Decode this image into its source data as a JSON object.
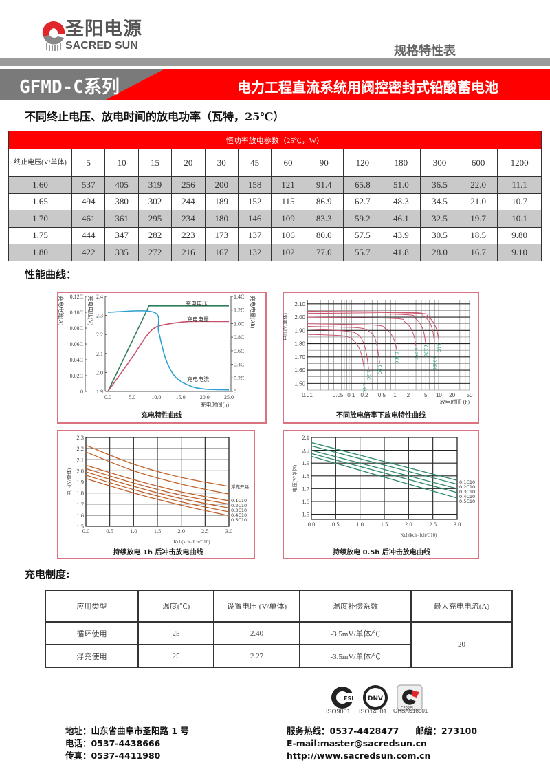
{
  "header": {
    "logo_cn": "圣阳电源",
    "logo_en": "SACRED SUN",
    "doc_type": "规格特性表",
    "series": "GFMD-C系列",
    "product": "电力工程直流系统用阀控密封式铅酸蓄电池",
    "brand_red": "#ff0000"
  },
  "power_table": {
    "section_title": "不同终止电压、放电时间的放电功率（瓦特，25℃）",
    "caption": "恒功率放电参数（25℃，W）",
    "col0_header": "终止电压(V/单体)",
    "columns": [
      "5",
      "10",
      "15",
      "20",
      "30",
      "45",
      "60",
      "90",
      "120",
      "180",
      "300",
      "600",
      "1200"
    ],
    "rows": [
      {
        "v": "1.60",
        "vals": [
          "537",
          "405",
          "319",
          "256",
          "200",
          "158",
          "121",
          "91.4",
          "65.8",
          "51.0",
          "36.5",
          "22.0",
          "11.1"
        ]
      },
      {
        "v": "1.65",
        "vals": [
          "494",
          "380",
          "302",
          "244",
          "189",
          "152",
          "115",
          "86.9",
          "62.7",
          "48.3",
          "34.5",
          "21.0",
          "10.7"
        ]
      },
      {
        "v": "1.70",
        "vals": [
          "461",
          "361",
          "295",
          "234",
          "180",
          "146",
          "109",
          "83.3",
          "59.2",
          "46.1",
          "32.5",
          "19.7",
          "10.1"
        ]
      },
      {
        "v": "1.75",
        "vals": [
          "444",
          "347",
          "282",
          "223",
          "173",
          "137",
          "106",
          "80.0",
          "57.5",
          "43.9",
          "30.5",
          "18.5",
          "9.80"
        ]
      },
      {
        "v": "1.80",
        "vals": [
          "422",
          "335",
          "272",
          "216",
          "167",
          "132",
          "102",
          "77.0",
          "55.7",
          "41.8",
          "28.0",
          "16.7",
          "9.10"
        ]
      }
    ]
  },
  "curves_title": "性能曲线：",
  "chart_data": [
    {
      "type": "line",
      "title": "充电特性曲线",
      "xlabel": "充电时间(h)",
      "xlim": [
        0,
        25
      ],
      "xticks": [
        "0.0",
        "5.0",
        "10.0",
        "15.0",
        "20.0",
        "25.0"
      ],
      "current_axis": {
        "label": "充电电流(A)",
        "lim": [
          0,
          0.12
        ],
        "ticks": [
          "0",
          "0.02C",
          "0.04C",
          "0.06C",
          "0.08C",
          "0.10C",
          "0.12C"
        ]
      },
      "voltage_axis": {
        "label": "充电电压(V)",
        "lim": [
          1.9,
          2.4
        ],
        "ticks": [
          "1.9",
          "2.0",
          "2.1",
          "2.2",
          "2.3",
          "2.4"
        ]
      },
      "capacity_axis": {
        "label": "充电电量(Ah)",
        "lim": [
          0,
          1.4
        ],
        "ticks": [
          "0",
          "0.2C",
          "0.4C",
          "0.6C",
          "0.8C",
          "1.0C",
          "1.2C",
          "1.4C"
        ]
      },
      "series": [
        {
          "name": "充电电压",
          "axis": "voltage",
          "color": "#2e7d5b",
          "x": [
            0,
            8.5,
            25
          ],
          "y": [
            1.9,
            2.35,
            2.35
          ]
        },
        {
          "name": "充电电量",
          "axis": "capacity",
          "color": "#c8506a",
          "x": [
            0,
            5,
            8,
            10,
            13,
            17,
            25
          ],
          "y": [
            0,
            0.5,
            0.82,
            0.95,
            1.0,
            1.03,
            1.03
          ]
        },
        {
          "name": "充电电流",
          "axis": "current",
          "color": "#2a9fd0",
          "x": [
            0,
            9.5,
            10.5,
            12,
            14,
            17,
            20,
            25
          ],
          "y": [
            0.1,
            0.1,
            0.075,
            0.04,
            0.018,
            0.007,
            0.003,
            0.002
          ]
        }
      ]
    },
    {
      "type": "line",
      "title": "不同放电倍率下放电特性曲线",
      "xlabel": "放电时间 (h)",
      "ylabel": "电压(V/单体)",
      "xscale": "log",
      "xlim": [
        0.01,
        50
      ],
      "ylim": [
        1.45,
        2.13
      ],
      "xticks": [
        "0.01",
        "0.05",
        "0.1",
        "0.2",
        "0.5",
        "1",
        "2",
        "5",
        "10",
        "20",
        "50"
      ],
      "yticks": [
        "1.50",
        "1.60",
        "1.70",
        "1.80",
        "1.90",
        "2.00",
        "2.10"
      ],
      "grid": true,
      "color": "#c8506a",
      "label_color": "#2e9a70",
      "series": [
        {
          "name": "0.1C",
          "points": [
            [
              0.01,
              2.04
            ],
            [
              3,
              2.03
            ],
            [
              5.5,
              2.005
            ],
            [
              7.5,
              1.96
            ],
            [
              9,
              1.9
            ],
            [
              10,
              1.82
            ]
          ]
        },
        {
          "name": "0.088C",
          "points": [
            [
              0.01,
              2.045
            ],
            [
              2.4,
              2.035
            ],
            [
              4.4,
              2.01
            ],
            [
              6,
              1.965
            ],
            [
              7.2,
              1.9
            ],
            [
              8,
              1.8
            ]
          ]
        },
        {
          "name": "0.17C",
          "points": [
            [
              0.01,
              2.03
            ],
            [
              1.5,
              2.02
            ],
            [
              2.75,
              1.995
            ],
            [
              3.75,
              1.95
            ],
            [
              4.5,
              1.89
            ],
            [
              5,
              1.8
            ]
          ]
        },
        {
          "name": "0.25C",
          "points": [
            [
              0.01,
              2.0
            ],
            [
              0.9,
              1.99
            ],
            [
              1.65,
              1.965
            ],
            [
              2.25,
              1.92
            ],
            [
              2.7,
              1.86
            ],
            [
              3,
              1.78
            ]
          ]
        },
        {
          "name": "0.48C",
          "points": [
            [
              0.01,
              1.95
            ],
            [
              0.33,
              1.94
            ],
            [
              0.6,
              1.915
            ],
            [
              0.82,
              1.87
            ],
            [
              1.0,
              1.81
            ],
            [
              1.1,
              1.75
            ]
          ]
        },
        {
          "name": "0.8C",
          "points": [
            [
              0.01,
              1.93
            ],
            [
              0.135,
              1.92
            ],
            [
              0.25,
              1.895
            ],
            [
              0.34,
              1.85
            ],
            [
              0.4,
              1.76
            ],
            [
              0.45,
              1.65
            ]
          ]
        },
        {
          "name": "1.3C",
          "points": [
            [
              0.01,
              1.91
            ],
            [
              0.075,
              1.895
            ],
            [
              0.14,
              1.87
            ],
            [
              0.19,
              1.81
            ],
            [
              0.225,
              1.72
            ],
            [
              0.25,
              1.61
            ]
          ]
        },
        {
          "name": "1.6C",
          "points": [
            [
              0.01,
              1.87
            ],
            [
              0.06,
              1.86
            ],
            [
              0.11,
              1.83
            ],
            [
              0.15,
              1.77
            ],
            [
              0.18,
              1.69
            ],
            [
              0.2,
              1.6
            ]
          ]
        }
      ]
    },
    {
      "type": "line",
      "title": "持续放电 1h 后冲击放电曲线",
      "xlabel": "Kch(kch=Ich/C10)",
      "ylabel": "电压(V/单体)",
      "xlim": [
        0,
        3
      ],
      "ylim": [
        1.5,
        2.3
      ],
      "xticks": [
        "0.0",
        "0.5",
        "1.0",
        "1.5",
        "2.0",
        "2.5",
        "3.0"
      ],
      "yticks": [
        "1.5",
        "1.6",
        "1.7",
        "1.8",
        "1.9",
        "2.0",
        "2.1",
        "2.2",
        "2.3"
      ],
      "grid": true,
      "color": "#c0622c",
      "x": [
        0,
        1,
        2,
        3
      ],
      "series": [
        {
          "name": "浮充开路",
          "values": [
            2.23,
            2.06,
            1.94,
            1.86
          ]
        },
        {
          "name": "",
          "values": [
            2.17,
            2.0,
            1.88,
            1.79
          ]
        },
        {
          "name": "0.1C10",
          "values": [
            2.05,
            1.92,
            1.81,
            1.73
          ]
        },
        {
          "name": "0.2C10",
          "values": [
            2.02,
            1.89,
            1.78,
            1.7
          ]
        },
        {
          "name": "0.3C10",
          "values": [
            1.99,
            1.86,
            1.75,
            1.665
          ]
        },
        {
          "name": "0.4C10",
          "values": [
            1.96,
            1.83,
            1.72,
            1.63
          ]
        },
        {
          "name": "0.5C10",
          "values": [
            1.93,
            1.8,
            1.69,
            1.595
          ]
        }
      ]
    },
    {
      "type": "line",
      "title": "持续放电 0.5h 后冲击放电曲线",
      "xlabel": "Kch(kch=Ich/C10)",
      "ylabel": "电压(V/单体)",
      "xlim": [
        0,
        3
      ],
      "ylim": [
        1.46,
        2.1
      ],
      "xticks": [
        "0.0",
        "0.5",
        "1.0",
        "1.5",
        "2.0",
        "2.5",
        "3.0"
      ],
      "yticks": [
        "1.5",
        "1.6",
        "1.7",
        "1.8",
        "1.9",
        "2.0",
        "2.1"
      ],
      "grid": true,
      "color": "#2e8a6a",
      "x": [
        0,
        3
      ],
      "series": [
        {
          "name": "0.1C10",
          "values": [
            2.06,
            1.765
          ]
        },
        {
          "name": "0.2C10",
          "values": [
            2.034,
            1.735
          ]
        },
        {
          "name": "0.3C10",
          "values": [
            2.0,
            1.7
          ]
        },
        {
          "name": "0.4C10",
          "values": [
            1.975,
            1.67
          ]
        },
        {
          "name": "0.5C10",
          "values": [
            1.953,
            1.627
          ]
        }
      ]
    }
  ],
  "charge_table": {
    "section_title": "充电制度:",
    "headers": [
      "应用类型",
      "温度(℃)",
      "设置电压 (V/单体)",
      "温度补偿系数",
      "最大充电电流(A)"
    ],
    "rows": [
      {
        "type": "循环使用",
        "temp": "25",
        "voltage": "2.40",
        "comp": "-3.5mV/单体/℃"
      },
      {
        "type": "浮充使用",
        "temp": "25",
        "voltage": "2.27",
        "comp": "-3.5mV/单体/℃"
      }
    ],
    "max_current": "20"
  },
  "certs": [
    "ISO9001",
    "ISO14001",
    "OHSAS18001"
  ],
  "cert_marks": [
    "ESI",
    "DNV",
    "CEPREL"
  ],
  "footer": {
    "address": "地址：山东省曲阜市圣阳路 1 号",
    "phone": "电话：0537-4438666",
    "fax": "传真：0537-4411980",
    "hotline": "服务热线：0537-4428477",
    "postcode": "邮编：273100",
    "email": "E-mail:master@sacredsun.cn",
    "web": "http://www.sacredsun.com.cn"
  }
}
